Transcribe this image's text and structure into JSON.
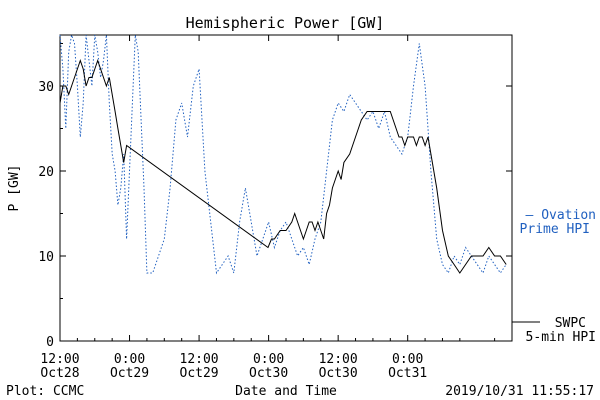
{
  "chart_data": {
    "type": "line",
    "title": "Hemispheric Power [GW]",
    "ylabel": "P [GW]",
    "xlabel": "Date and Time",
    "ylim": [
      0,
      36
    ],
    "y_ticks": [
      0,
      10,
      20,
      30
    ],
    "x_range_hours": [
      0,
      78
    ],
    "x_ticks": [
      {
        "h": 0,
        "line1": "12:00",
        "line2": "Oct28"
      },
      {
        "h": 12,
        "line1": "0:00",
        "line2": "Oct29"
      },
      {
        "h": 24,
        "line1": "12:00",
        "line2": "Oct29"
      },
      {
        "h": 36,
        "line1": "0:00",
        "line2": "Oct30"
      },
      {
        "h": 48,
        "line1": "12:00",
        "line2": "Oct30"
      },
      {
        "h": 60,
        "line1": "0:00",
        "line2": "Oct31"
      }
    ],
    "series": [
      {
        "name": "SWPC 5-min HPI",
        "label_line1": "SWPC",
        "label_line2": "5-min HPI",
        "color": "#000000",
        "style": "solid",
        "x": [
          0,
          0.5,
          1,
          1.5,
          2,
          2.5,
          3,
          3.5,
          4,
          4.5,
          5,
          5.5,
          6,
          6.5,
          7,
          7.5,
          8,
          8.5,
          9,
          9.5,
          10,
          10.5,
          11,
          11.5,
          35.9,
          36.5,
          37,
          38,
          39,
          40,
          40.5,
          41,
          41.5,
          42,
          42.5,
          43,
          43.5,
          44,
          44.5,
          45,
          45.5,
          46,
          46.5,
          47,
          47.5,
          48,
          48.5,
          49,
          50,
          51,
          51.5,
          52,
          53,
          54,
          55,
          56,
          56.5,
          57,
          57.5,
          58,
          58.5,
          59,
          59.5,
          60,
          60.5,
          61,
          61.5,
          62,
          62.5,
          63,
          63.5,
          64,
          65,
          66,
          67,
          68,
          69,
          70,
          71,
          72,
          73,
          74,
          75,
          76,
          77
        ],
        "y": [
          28,
          30,
          30,
          29,
          30,
          31,
          32,
          33,
          32,
          30,
          31,
          31,
          32,
          33,
          32,
          31,
          30,
          31,
          29,
          27,
          25,
          23,
          21,
          23,
          11,
          12,
          12,
          13,
          13,
          14,
          15,
          14,
          13,
          12,
          13,
          14,
          14,
          13,
          14,
          13,
          12,
          15,
          16,
          18,
          19,
          20,
          19,
          21,
          22,
          24,
          25,
          26,
          27,
          27,
          27,
          27,
          27,
          27,
          26,
          25,
          24,
          24,
          23,
          24,
          24,
          24,
          23,
          24,
          24,
          23,
          24,
          22,
          18,
          13,
          10,
          9,
          8,
          9,
          10,
          10,
          10,
          11,
          10,
          10,
          9
        ]
      },
      {
        "name": "Ovation Prime HPI",
        "label_line1": "— Ovation",
        "label_line2": "Prime HPI",
        "color": "#2060c0",
        "style": "dotted",
        "x": [
          0,
          0.5,
          1,
          1.5,
          2,
          2.5,
          3,
          3.5,
          4,
          4.5,
          5,
          5.5,
          6,
          6.5,
          7,
          7.5,
          8,
          8.5,
          9,
          9.5,
          10,
          10.5,
          11,
          11.5,
          12,
          12.5,
          13,
          13.5,
          14,
          14.5,
          15,
          16,
          17,
          18,
          19,
          20,
          21,
          22,
          23,
          24,
          25,
          26,
          27,
          28,
          29,
          30,
          30.5,
          31,
          32,
          33,
          34,
          35,
          36,
          37,
          38,
          39,
          40,
          41,
          42,
          43,
          44,
          45,
          46,
          47,
          48,
          49,
          50,
          51,
          52,
          53,
          54,
          55,
          56,
          57,
          58,
          59,
          60,
          61,
          62,
          63,
          64,
          65,
          66,
          67,
          68,
          69,
          70,
          71,
          72,
          73,
          74,
          75,
          76,
          77
        ],
        "y": [
          36,
          32,
          25,
          34,
          36,
          35,
          30,
          24,
          28,
          36,
          33,
          30,
          36,
          34,
          31,
          33,
          36,
          28,
          22,
          20,
          16,
          18,
          22,
          12,
          20,
          28,
          36,
          34,
          26,
          18,
          8,
          8,
          10,
          12,
          18,
          26,
          28,
          24,
          30,
          32,
          20,
          14,
          8,
          9,
          10,
          8,
          11,
          14,
          18,
          14,
          10,
          12,
          14,
          11,
          13,
          14,
          12,
          10,
          11,
          9,
          12,
          14,
          20,
          26,
          28,
          27,
          29,
          28,
          27,
          26,
          27,
          25,
          27,
          24,
          23,
          22,
          24,
          30,
          35,
          30,
          20,
          12,
          9,
          8,
          10,
          9,
          11,
          10,
          9,
          8,
          10,
          9,
          8,
          9
        ]
      }
    ],
    "grid": false,
    "legend_placement": "right"
  },
  "footer": {
    "plot_label": "Plot: CCMC",
    "timestamp": "2019/10/31  11:55:17"
  }
}
